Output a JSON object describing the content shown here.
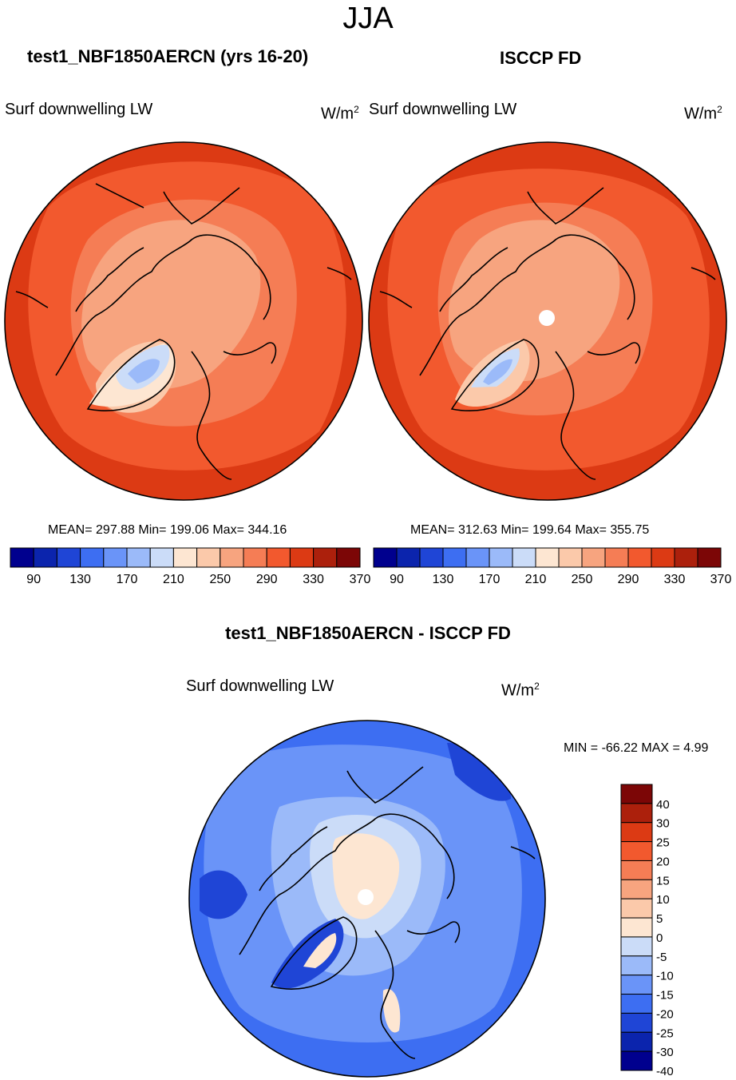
{
  "season": "JJA",
  "colors": {
    "abs_palette": [
      "#00008e",
      "#0b24ad",
      "#1f45d6",
      "#3d6ef2",
      "#6a94f8",
      "#9bbaf9",
      "#cbdcf8",
      "#fde6d2",
      "#fbc9aa",
      "#f7a47f",
      "#f57d55",
      "#f2592e",
      "#dc3a14",
      "#ac200c",
      "#7c0606"
    ],
    "diff_palette": [
      "#00008e",
      "#0b24ad",
      "#1f45d6",
      "#3d6ef2",
      "#6a94f8",
      "#9bbaf9",
      "#cbdcf8",
      "#fde6d2",
      "#fbc9aa",
      "#f7a47f",
      "#f57d55",
      "#f2592e",
      "#dc3a14",
      "#ac200c",
      "#7c0606"
    ]
  },
  "panels": {
    "model": {
      "title": "test1_NBF1850AERCN (yrs 16-20)",
      "variable": "Surf downwelling LW",
      "units": "W/m",
      "units_exp": "2",
      "stats": "MEAN= 297.88  Min= 199.06  Max= 344.16"
    },
    "obs": {
      "title": "ISCCP FD",
      "variable": "Surf downwelling LW",
      "units": "W/m",
      "units_exp": "2",
      "stats": "MEAN= 312.63  Min= 199.64  Max= 355.75"
    },
    "diff": {
      "title": "test1_NBF1850AERCN - ISCCP FD",
      "variable": "Surf downwelling LW",
      "units": "W/m",
      "units_exp": "2",
      "stats": "MIN = -66.22 MAX =   4.99"
    }
  },
  "chart_data": [
    {
      "type": "heatmap",
      "projection": "north polar stereographic",
      "title": "test1_NBF1850AERCN (yrs 16-20)",
      "variable": "Surf downwelling LW",
      "units": "W/m2",
      "mean": 297.88,
      "min": 199.06,
      "max": 344.16,
      "colorbar_ticks": [
        "90",
        "130",
        "170",
        "210",
        "250",
        "290",
        "330",
        "370"
      ],
      "contour_levels": [
        80,
        90,
        110,
        130,
        150,
        170,
        190,
        210,
        230,
        250,
        270,
        290,
        310,
        330,
        350,
        370
      ]
    },
    {
      "type": "heatmap",
      "projection": "north polar stereographic",
      "title": "ISCCP FD",
      "variable": "Surf downwelling LW",
      "units": "W/m2",
      "mean": 312.63,
      "min": 199.64,
      "max": 355.75,
      "colorbar_ticks": [
        "90",
        "130",
        "170",
        "210",
        "250",
        "290",
        "330",
        "370"
      ],
      "contour_levels": [
        80,
        90,
        110,
        130,
        150,
        170,
        190,
        210,
        230,
        250,
        270,
        290,
        310,
        330,
        350,
        370
      ]
    },
    {
      "type": "heatmap",
      "projection": "north polar stereographic",
      "title": "test1_NBF1850AERCN - ISCCP FD",
      "variable": "Surf downwelling LW",
      "units": "W/m2",
      "min": -66.22,
      "max": 4.99,
      "colorbar_ticks": [
        "40",
        "30",
        "25",
        "20",
        "15",
        "10",
        "5",
        "0",
        "-5",
        "-10",
        "-15",
        "-20",
        "-25",
        "-30",
        "-40"
      ]
    }
  ]
}
